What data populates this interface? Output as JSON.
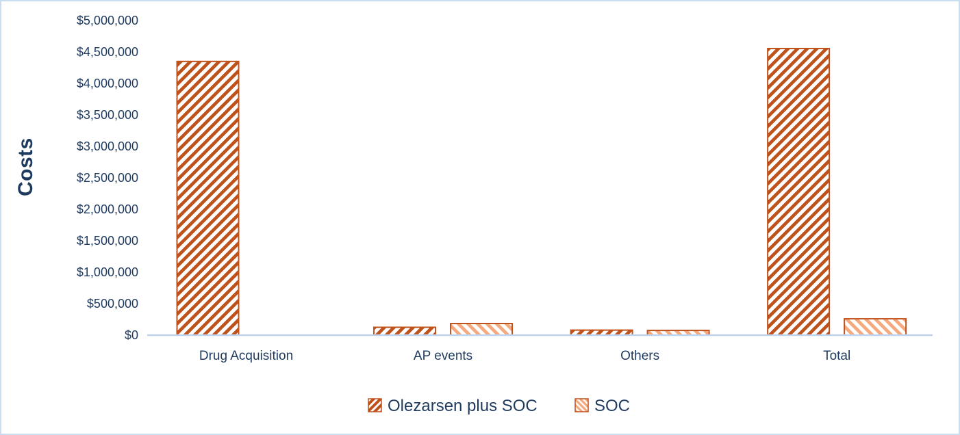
{
  "figure": {
    "background": "#FFFFFF",
    "border_color": "#C9DDF1"
  },
  "chart_data": {
    "type": "bar",
    "title": "",
    "xlabel": "",
    "ylabel": "Costs",
    "categories": [
      "Drug Acquisition",
      "AP events",
      "Others",
      "Total"
    ],
    "series": [
      {
        "name": "Olezarsen plus SOC",
        "values": [
          4350000,
          125000,
          80000,
          4555000
        ],
        "color": "#BF511B",
        "border_color": "#BF511B",
        "hatch": "forward-diagonal"
      },
      {
        "name": "SOC",
        "values": [
          0,
          185000,
          75000,
          260000
        ],
        "color": "#F5A97E",
        "border_color": "#BF511B",
        "hatch": "backward-diagonal"
      }
    ],
    "ylim": [
      0,
      5000000
    ],
    "ytick_step": 500000,
    "ytick_labels": [
      "$0",
      "$500,000",
      "$1,000,000",
      "$1,500,000",
      "$2,000,000",
      "$2,500,000",
      "$3,000,000",
      "$3,500,000",
      "$4,000,000",
      "$4,500,000",
      "$5,000,000"
    ],
    "grid": false,
    "legend_position": "bottom",
    "axis_line_color": "#BFD4EC",
    "text_color": "#1F3A5F"
  }
}
